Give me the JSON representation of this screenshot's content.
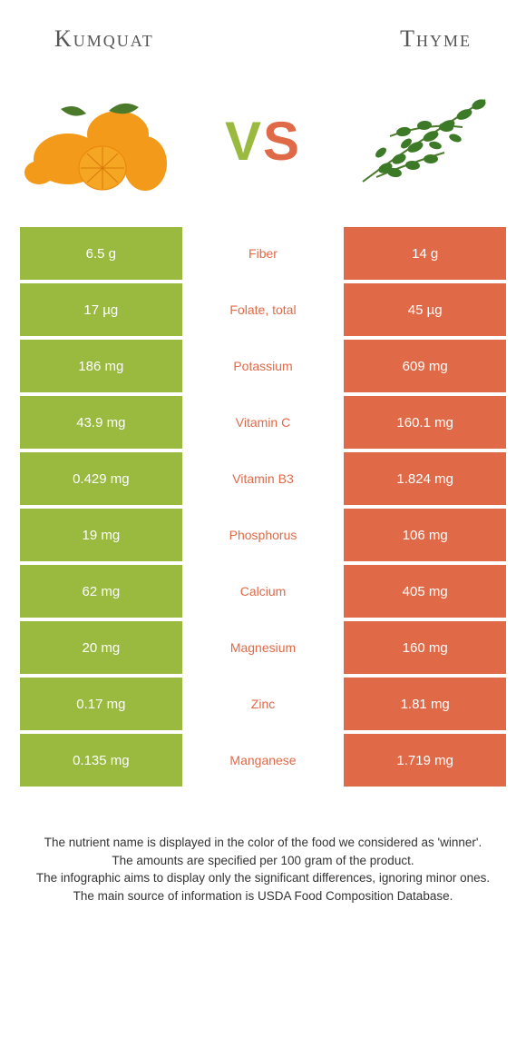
{
  "header": {
    "left": "Kumquat",
    "right": "Thyme"
  },
  "vs": {
    "v": "V",
    "s": "S"
  },
  "colors": {
    "left": "#99b93f",
    "right": "#e06a48",
    "bg": "#ffffff"
  },
  "table": {
    "rows": [
      {
        "left": "6.5 g",
        "label": "Fiber",
        "right": "14 g",
        "winner": "right"
      },
      {
        "left": "17 µg",
        "label": "Folate, total",
        "right": "45 µg",
        "winner": "right"
      },
      {
        "left": "186 mg",
        "label": "Potassium",
        "right": "609 mg",
        "winner": "right"
      },
      {
        "left": "43.9 mg",
        "label": "Vitamin C",
        "right": "160.1 mg",
        "winner": "right"
      },
      {
        "left": "0.429 mg",
        "label": "Vitamin B3",
        "right": "1.824 mg",
        "winner": "right"
      },
      {
        "left": "19 mg",
        "label": "Phosphorus",
        "right": "106 mg",
        "winner": "right"
      },
      {
        "left": "62 mg",
        "label": "Calcium",
        "right": "405 mg",
        "winner": "right"
      },
      {
        "left": "20 mg",
        "label": "Magnesium",
        "right": "160 mg",
        "winner": "right"
      },
      {
        "left": "0.17 mg",
        "label": "Zinc",
        "right": "1.81 mg",
        "winner": "right"
      },
      {
        "left": "0.135 mg",
        "label": "Manganese",
        "right": "1.719 mg",
        "winner": "right"
      }
    ]
  },
  "footer": {
    "line1": "The nutrient name is displayed in the color of the food we considered as 'winner'.",
    "line2": "The amounts are specified per 100 gram of the product.",
    "line3": "The infographic aims to display only the significant differences, ignoring minor ones.",
    "line4": "The main source of information is USDA Food Composition Database."
  }
}
